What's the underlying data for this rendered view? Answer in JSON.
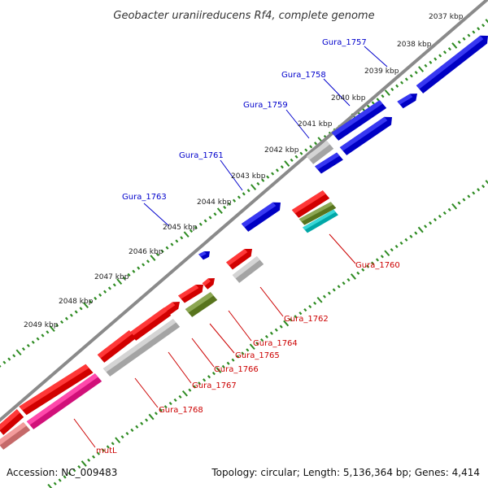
{
  "title": "Geobacter uraniireducens Rf4, complete genome",
  "footer": {
    "accession": "Accession: NC_009483",
    "summary": "Topology: circular; Length: 5,136,364 bp; Genes: 4,414"
  },
  "colors": {
    "backbone": "#808080",
    "tick": "#2e8b22",
    "forward_label": "#0000cc",
    "reverse_label": "#cc0000",
    "cds_forward": "#0000ee",
    "cds_reverse": "#ff0000",
    "gene_gray": "#c8c8c8",
    "rna_olive": "#6b8e23",
    "cyan": "#00cccc",
    "pink": "#ff1493",
    "light_red": "#f08080"
  },
  "kbp_labels": [
    "2037 kbp",
    "2038 kbp",
    "2039 kbp",
    "2040 kbp",
    "2041 kbp",
    "2042 kbp",
    "2043 kbp",
    "2044 kbp",
    "2045 kbp",
    "2046 kbp",
    "2047 kbp",
    "2048 kbp",
    "2049 kbp"
  ],
  "gene_labels_forward": [
    "Gura_1757",
    "Gura_1758",
    "Gura_1759",
    "Gura_1761",
    "Gura_1763"
  ],
  "gene_labels_reverse": [
    "Gura_1760",
    "Gura_1762",
    "Gura_1764",
    "Gura_1765",
    "Gura_1766",
    "Gura_1767",
    "Gura_1768",
    "mutL"
  ]
}
